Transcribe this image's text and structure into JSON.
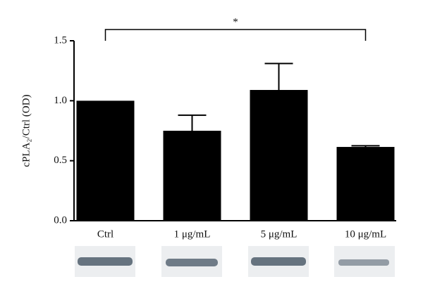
{
  "chart_data": {
    "type": "bar",
    "y_label": "cPLA₂/Ctrl (OD)",
    "categories": [
      "Ctrl",
      "1 μg/mL",
      "5 μg/mL",
      "10 μg/mL"
    ],
    "values": [
      1.0,
      0.75,
      1.09,
      0.615
    ],
    "errors": [
      null,
      0.13,
      0.22,
      0.01
    ],
    "color": "#000000",
    "ylim": [
      0,
      1.5
    ],
    "yticks": [
      {
        "value": 0,
        "label": "0.0"
      },
      0.5,
      {
        "value": 1,
        "label": "1.0"
      },
      1.5
    ],
    "annotation": "*"
  }
}
